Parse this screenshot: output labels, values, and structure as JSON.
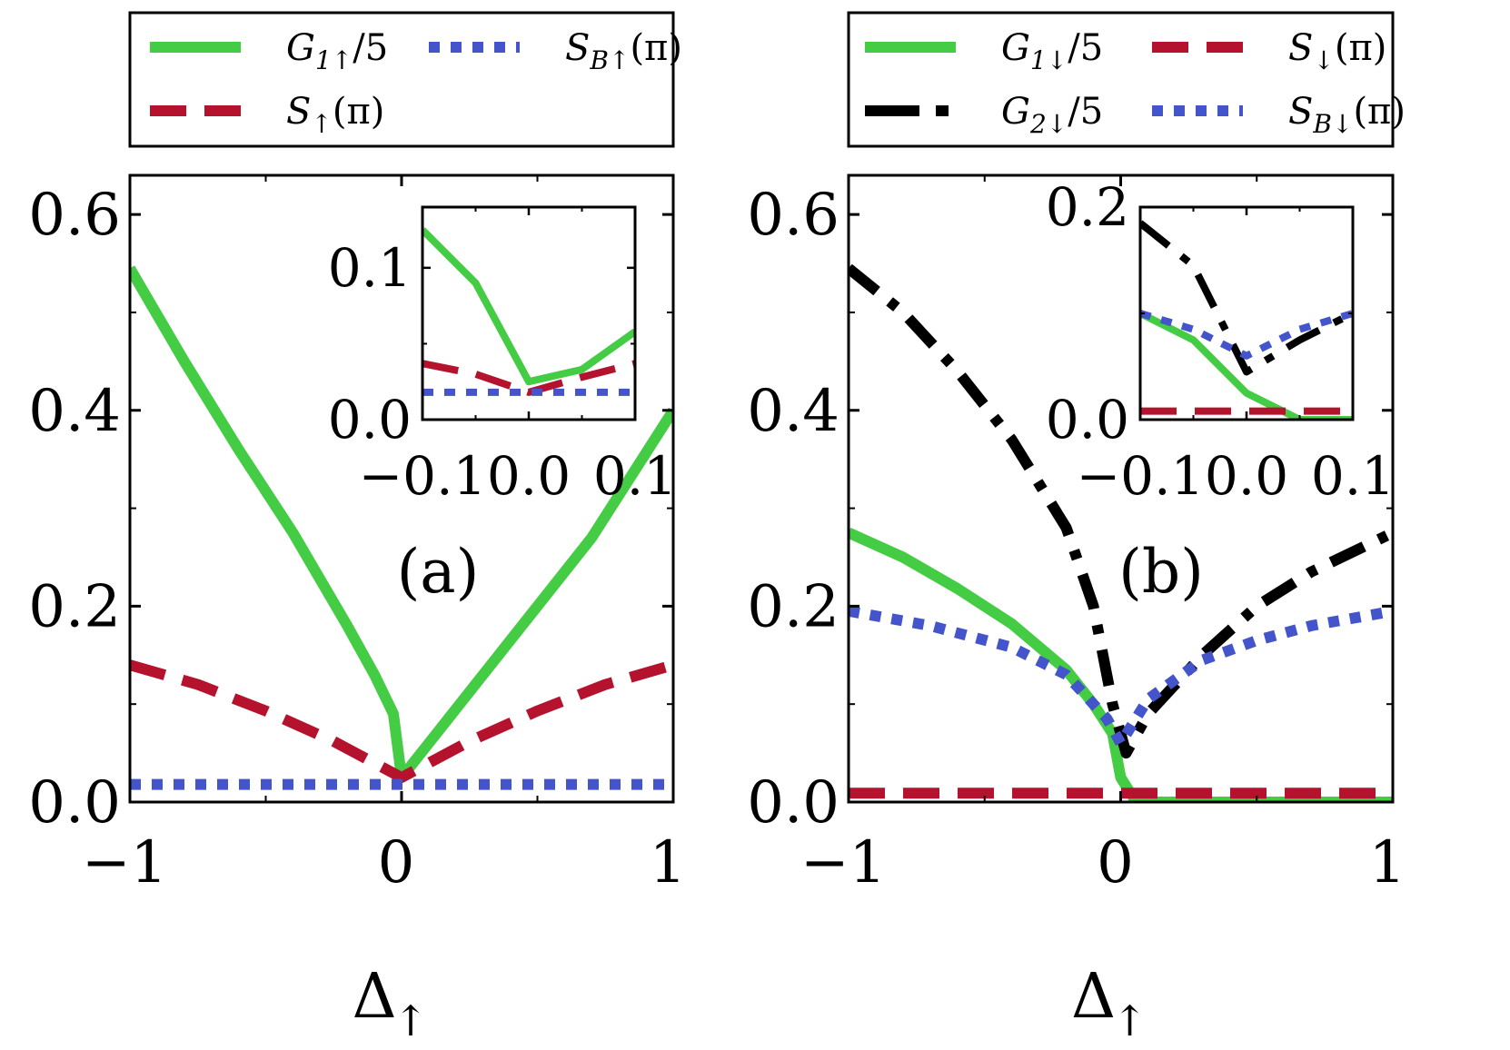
{
  "chart_data": [
    {
      "type": "line",
      "panel_label": "(a)",
      "xlabel": "Δ",
      "xlabel_sub": "↑",
      "xlim": [
        -1,
        1
      ],
      "ylim": [
        0,
        0.64
      ],
      "xticks": [
        -1,
        0,
        1
      ],
      "xtick_labels": [
        "−1",
        "0",
        "1"
      ],
      "yticks": [
        0.0,
        0.2,
        0.4,
        0.6
      ],
      "ytick_labels": [
        "0.0",
        "0.2",
        "0.4",
        "0.6"
      ],
      "legend_position": "top",
      "legend": [
        {
          "name": "G1↑/5",
          "main": "G",
          "sub": "1↑",
          "tail": "/5",
          "color": "#44cc44",
          "style": "solid"
        },
        {
          "name": "S↑(π)",
          "main": "S",
          "sub": "↑",
          "tail": "(π)",
          "color": "#b5122e",
          "style": "dashed"
        },
        {
          "name": "SB↑(π)",
          "main": "S",
          "sub": "B↑",
          "tail": "(π)",
          "color": "#4455cc",
          "style": "dotted"
        }
      ],
      "series": [
        {
          "name": "G1↑/5",
          "color": "#44cc44",
          "style": "solid",
          "x": [
            -1,
            -0.8,
            -0.6,
            -0.4,
            -0.2,
            -0.1,
            -0.03,
            0,
            0.1,
            0.3,
            0.5,
            0.7,
            1
          ],
          "y": [
            0.545,
            0.45,
            0.36,
            0.275,
            0.18,
            0.13,
            0.09,
            0.025,
            0.06,
            0.13,
            0.2,
            0.27,
            0.4
          ]
        },
        {
          "name": "S↑(π)",
          "color": "#b5122e",
          "style": "dashed",
          "x": [
            -1,
            -0.75,
            -0.5,
            -0.25,
            0,
            0.25,
            0.5,
            0.75,
            1
          ],
          "y": [
            0.14,
            0.12,
            0.093,
            0.062,
            0.025,
            0.062,
            0.093,
            0.12,
            0.14
          ]
        },
        {
          "name": "SB↑(π)",
          "color": "#4455cc",
          "style": "dotted",
          "x": [
            -1,
            1
          ],
          "y": [
            0.018,
            0.018
          ]
        }
      ],
      "inset": {
        "xlim": [
          -0.1,
          0.1
        ],
        "ylim": [
          0,
          0.14
        ],
        "xticks": [
          -0.1,
          0.0,
          0.1
        ],
        "xtick_labels": [
          "−0.1",
          "0.0",
          "0.1"
        ],
        "yticks": [
          0.0,
          0.1
        ],
        "ytick_labels": [
          "0.0",
          "0.1"
        ],
        "series": [
          {
            "name": "G1↑/5",
            "color": "#44cc44",
            "style": "solid",
            "x": [
              -0.1,
              -0.05,
              0,
              0.05,
              0.1
            ],
            "y": [
              0.125,
              0.09,
              0.025,
              0.033,
              0.058
            ]
          },
          {
            "name": "S↑(π)",
            "color": "#b5122e",
            "style": "dashed",
            "x": [
              -0.1,
              -0.05,
              0,
              0.05,
              0.1
            ],
            "y": [
              0.037,
              0.03,
              0.018,
              0.028,
              0.037
            ]
          },
          {
            "name": "SB↑(π)",
            "color": "#4455cc",
            "style": "dotted",
            "x": [
              -0.1,
              0.1
            ],
            "y": [
              0.018,
              0.018
            ]
          }
        ]
      }
    },
    {
      "type": "line",
      "panel_label": "(b)",
      "xlabel": "Δ",
      "xlabel_sub": "↑",
      "xlim": [
        -1,
        1
      ],
      "ylim": [
        0,
        0.64
      ],
      "xticks": [
        -1,
        0,
        1
      ],
      "xtick_labels": [
        "−1",
        "0",
        "1"
      ],
      "yticks": [
        0.0,
        0.2,
        0.4,
        0.6
      ],
      "ytick_labels": [
        "0.0",
        "0.2",
        "0.4",
        "0.6"
      ],
      "legend_position": "top",
      "legend": [
        {
          "name": "G1↓/5",
          "main": "G",
          "sub": "1↓",
          "tail": "/5",
          "color": "#44cc44",
          "style": "solid"
        },
        {
          "name": "G2↓/5",
          "main": "G",
          "sub": "2↓",
          "tail": "/5",
          "color": "#000000",
          "style": "dashdot"
        },
        {
          "name": "S↓(π)",
          "main": "S",
          "sub": "↓",
          "tail": "(π)",
          "color": "#b5122e",
          "style": "dashed"
        },
        {
          "name": "SB↓(π)",
          "main": "S",
          "sub": "B↓",
          "tail": "(π)",
          "color": "#4455cc",
          "style": "dotted"
        }
      ],
      "series": [
        {
          "name": "G1↓/5",
          "color": "#44cc44",
          "style": "solid",
          "x": [
            -1,
            -0.8,
            -0.6,
            -0.4,
            -0.2,
            -0.1,
            -0.03,
            0,
            0.05,
            0.1,
            0.5,
            1
          ],
          "y": [
            0.275,
            0.25,
            0.218,
            0.182,
            0.135,
            0.1,
            0.07,
            0.025,
            0.003,
            0.0,
            0.0,
            0.0
          ]
        },
        {
          "name": "G2↓/5",
          "color": "#000000",
          "style": "dashdot",
          "x": [
            -1,
            -0.8,
            -0.6,
            -0.4,
            -0.2,
            -0.1,
            -0.03,
            0.02,
            0.1,
            0.3,
            0.5,
            0.7,
            1
          ],
          "y": [
            0.545,
            0.5,
            0.44,
            0.37,
            0.28,
            0.2,
            0.1,
            0.05,
            0.09,
            0.15,
            0.2,
            0.235,
            0.275
          ]
        },
        {
          "name": "S↓(π)",
          "color": "#b5122e",
          "style": "dashed",
          "x": [
            -1,
            1
          ],
          "y": [
            0.009,
            0.009
          ]
        },
        {
          "name": "SB↓(π)",
          "color": "#4455cc",
          "style": "dotted",
          "x": [
            -1,
            -0.7,
            -0.4,
            -0.2,
            -0.05,
            0,
            0.1,
            0.3,
            0.5,
            0.7,
            1
          ],
          "y": [
            0.195,
            0.18,
            0.158,
            0.13,
            0.085,
            0.06,
            0.105,
            0.145,
            0.165,
            0.18,
            0.195
          ]
        }
      ],
      "inset": {
        "xlim": [
          -0.1,
          0.1
        ],
        "ylim": [
          0,
          0.2
        ],
        "xticks": [
          -0.1,
          0.0,
          0.1
        ],
        "xtick_labels": [
          "−0.1",
          "0.0",
          "0.1"
        ],
        "yticks": [
          0.0,
          0.2
        ],
        "ytick_labels": [
          "0.0",
          "0.2"
        ],
        "series": [
          {
            "name": "G1↓/5",
            "color": "#44cc44",
            "style": "solid",
            "x": [
              -0.1,
              -0.05,
              0,
              0.05,
              0.1
            ],
            "y": [
              0.1,
              0.075,
              0.025,
              0.0,
              0.0
            ]
          },
          {
            "name": "G2↓/5",
            "color": "#000000",
            "style": "dashdot",
            "x": [
              -0.1,
              -0.05,
              0,
              0.05,
              0.1
            ],
            "y": [
              0.185,
              0.145,
              0.045,
              0.075,
              0.1
            ]
          },
          {
            "name": "S↓(π)",
            "color": "#b5122e",
            "style": "dashed",
            "x": [
              -0.1,
              0.1
            ],
            "y": [
              0.008,
              0.008
            ]
          },
          {
            "name": "SB↓(π)",
            "color": "#4455cc",
            "style": "dotted",
            "x": [
              -0.1,
              -0.05,
              0,
              0.05,
              0.1
            ],
            "y": [
              0.1,
              0.085,
              0.06,
              0.085,
              0.1
            ]
          }
        ]
      }
    }
  ]
}
